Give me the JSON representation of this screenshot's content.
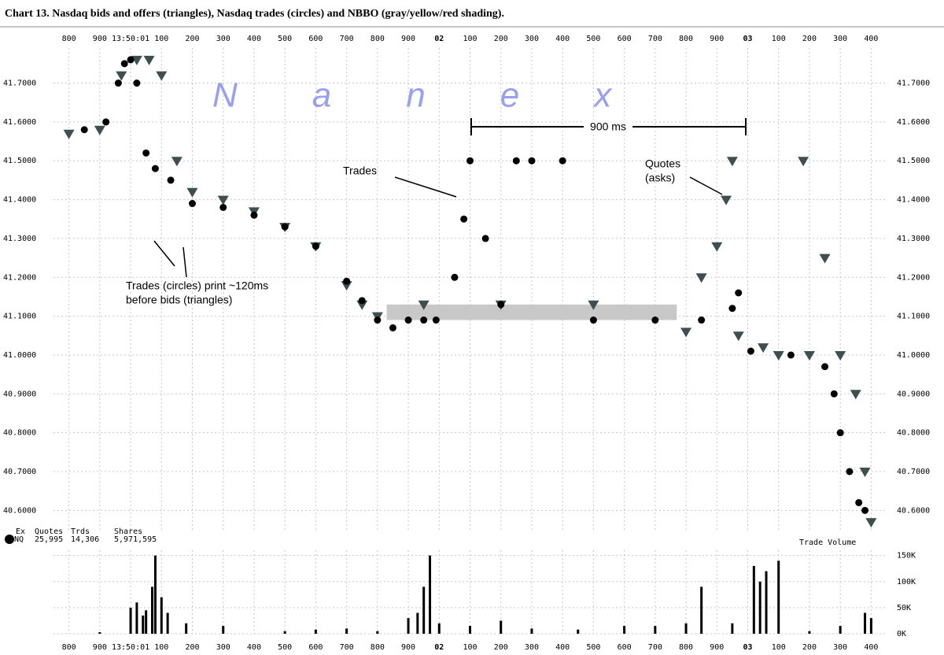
{
  "title": "Chart 13. Nasdaq bids and offers (triangles), Nasdaq trades (circles) and NBBO (gray/yellow/red shading).",
  "annotations": {
    "watermark": "Nanex",
    "span": "900 ms",
    "trades": "Trades",
    "quotes": "Quotes",
    "quotes_sub": "(asks)",
    "lead_1": "Trades (circles) print ~120ms",
    "lead_2": "before bids (triangles)",
    "volume_label": "Trade Volume"
  },
  "legend_table": {
    "headers": [
      "Ex",
      "Quotes",
      "Trds",
      "Shares"
    ],
    "row": [
      "NQ",
      "25,995",
      "14,306",
      "5,971,595"
    ]
  },
  "chart_data": [
    {
      "type": "scatter",
      "xlim": [
        0.75,
        3.45
      ],
      "ylim": [
        40.55,
        41.77
      ],
      "xticks": [
        {
          "value": 0.8,
          "label": "800"
        },
        {
          "value": 0.9,
          "label": "900"
        },
        {
          "value": 1.0,
          "label": "13:50:01"
        },
        {
          "value": 1.1,
          "label": "100"
        },
        {
          "value": 1.2,
          "label": "200"
        },
        {
          "value": 1.3,
          "label": "300"
        },
        {
          "value": 1.4,
          "label": "400"
        },
        {
          "value": 1.5,
          "label": "500"
        },
        {
          "value": 1.6,
          "label": "600"
        },
        {
          "value": 1.7,
          "label": "700"
        },
        {
          "value": 1.8,
          "label": "800"
        },
        {
          "value": 1.9,
          "label": "900"
        },
        {
          "value": 2.0,
          "label": "02"
        },
        {
          "value": 2.1,
          "label": "100"
        },
        {
          "value": 2.2,
          "label": "200"
        },
        {
          "value": 2.3,
          "label": "300"
        },
        {
          "value": 2.4,
          "label": "400"
        },
        {
          "value": 2.5,
          "label": "500"
        },
        {
          "value": 2.6,
          "label": "600"
        },
        {
          "value": 2.7,
          "label": "700"
        },
        {
          "value": 2.8,
          "label": "800"
        },
        {
          "value": 2.9,
          "label": "900"
        },
        {
          "value": 3.0,
          "label": "03"
        },
        {
          "value": 3.1,
          "label": "100"
        },
        {
          "value": 3.2,
          "label": "200"
        },
        {
          "value": 3.3,
          "label": "300"
        },
        {
          "value": 3.4,
          "label": "400"
        }
      ],
      "yticks": [
        {
          "value": 40.6,
          "label": "40.6000"
        },
        {
          "value": 40.7,
          "label": "40.7000"
        },
        {
          "value": 40.8,
          "label": "40.8000"
        },
        {
          "value": 40.9,
          "label": "40.9000"
        },
        {
          "value": 41.0,
          "label": "41.0000"
        },
        {
          "value": 41.1,
          "label": "41.1000"
        },
        {
          "value": 41.2,
          "label": "41.2000"
        },
        {
          "value": 41.3,
          "label": "41.3000"
        },
        {
          "value": 41.4,
          "label": "41.4000"
        },
        {
          "value": 41.5,
          "label": "41.5000"
        },
        {
          "value": 41.6,
          "label": "41.6000"
        },
        {
          "value": 41.7,
          "label": "41.7000"
        }
      ],
      "grid": true,
      "band": {
        "color": "#c8c8c8",
        "x": [
          1.83,
          2.77
        ],
        "low": 41.09,
        "high": 41.13
      },
      "series": [
        {
          "name": "NQ quotes",
          "marker": "triangle",
          "color": "#3d4f4f",
          "x": [
            0.8,
            0.9,
            0.97,
            1.02,
            1.06,
            1.1,
            1.15,
            1.2,
            1.3,
            1.4,
            1.5,
            1.6,
            1.7,
            1.75,
            1.8,
            1.95,
            2.2,
            2.5,
            2.8,
            2.85,
            2.9,
            2.93,
            2.95,
            2.97,
            3.05,
            3.1,
            3.18,
            3.2,
            3.25,
            3.3,
            3.35,
            3.38,
            3.4
          ],
          "values": [
            41.57,
            41.58,
            41.72,
            41.76,
            41.76,
            41.72,
            41.5,
            41.42,
            41.4,
            41.37,
            41.33,
            41.28,
            41.18,
            41.13,
            41.1,
            41.13,
            41.13,
            41.13,
            41.06,
            41.2,
            41.28,
            41.4,
            41.5,
            41.05,
            41.02,
            41.0,
            41.5,
            41.0,
            41.25,
            41.0,
            40.9,
            40.7,
            40.57
          ]
        },
        {
          "name": "NQ trades",
          "marker": "circle",
          "color": "#000000",
          "x": [
            0.85,
            0.92,
            0.96,
            0.98,
            1.0,
            1.02,
            1.05,
            1.08,
            1.13,
            1.2,
            1.3,
            1.4,
            1.5,
            1.6,
            1.7,
            1.75,
            1.8,
            1.85,
            1.9,
            1.95,
            1.99,
            2.05,
            2.08,
            2.1,
            2.15,
            2.2,
            2.25,
            2.3,
            2.4,
            2.5,
            2.7,
            2.85,
            2.95,
            2.97,
            3.01,
            3.14,
            3.25,
            3.28,
            3.3,
            3.33,
            3.36,
            3.38
          ],
          "values": [
            41.58,
            41.6,
            41.7,
            41.75,
            41.76,
            41.7,
            41.52,
            41.48,
            41.45,
            41.39,
            41.38,
            41.36,
            41.33,
            41.28,
            41.19,
            41.14,
            41.09,
            41.07,
            41.09,
            41.09,
            41.09,
            41.2,
            41.35,
            41.5,
            41.3,
            41.13,
            41.5,
            41.5,
            41.5,
            41.09,
            41.09,
            41.09,
            41.12,
            41.16,
            41.01,
            41.0,
            40.97,
            40.9,
            40.8,
            40.7,
            40.62,
            40.6
          ]
        }
      ]
    },
    {
      "type": "bar",
      "color": "#000000",
      "xlim": [
        0.75,
        3.45
      ],
      "ylim": [
        0,
        160000
      ],
      "yticks": [
        {
          "value": 0,
          "label": "0K"
        },
        {
          "value": 50000,
          "label": "50K"
        },
        {
          "value": 100000,
          "label": "100K"
        },
        {
          "value": 150000,
          "label": "150K"
        }
      ],
      "grid": true,
      "x": [
        0.9,
        1.0,
        1.02,
        1.04,
        1.05,
        1.07,
        1.08,
        1.1,
        1.12,
        1.18,
        1.3,
        1.5,
        1.6,
        1.7,
        1.8,
        1.9,
        1.93,
        1.95,
        1.97,
        2.0,
        2.1,
        2.2,
        2.3,
        2.45,
        2.6,
        2.7,
        2.8,
        2.85,
        2.95,
        3.02,
        3.04,
        3.06,
        3.1,
        3.2,
        3.3,
        3.38,
        3.4
      ],
      "values": [
        3000,
        50000,
        60000,
        35000,
        45000,
        90000,
        150000,
        70000,
        40000,
        20000,
        15000,
        5000,
        8000,
        10000,
        5000,
        30000,
        40000,
        90000,
        150000,
        20000,
        15000,
        25000,
        10000,
        8000,
        15000,
        15000,
        20000,
        90000,
        20000,
        130000,
        100000,
        120000,
        140000,
        5000,
        15000,
        40000,
        30000
      ]
    }
  ]
}
